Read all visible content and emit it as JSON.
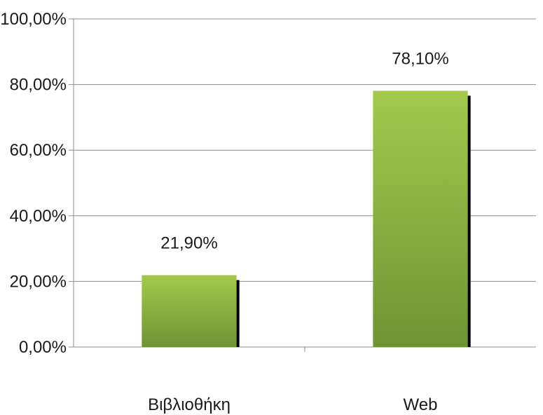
{
  "chart_data": {
    "type": "bar",
    "title": "",
    "xlabel": "",
    "ylabel": "",
    "categories": [
      "Βιβλιοθήκη",
      "Web"
    ],
    "values": [
      21.9,
      78.1
    ],
    "data_labels": [
      "21,90%",
      "78,10%"
    ],
    "ylim": [
      0,
      100
    ],
    "y_ticks": [
      0,
      20,
      40,
      60,
      80,
      100
    ],
    "y_tick_labels": [
      "0,00%",
      "20,00%",
      "40,00%",
      "60,00%",
      "80,00%",
      "100,00%"
    ],
    "grid": true,
    "legend": "none",
    "colors": {
      "bar_top": "#a3c94e",
      "bar_bottom": "#6e9434",
      "bar_shadow": "#000000",
      "grid": "#8c8c8c",
      "axis": "#8c8c8c"
    }
  }
}
